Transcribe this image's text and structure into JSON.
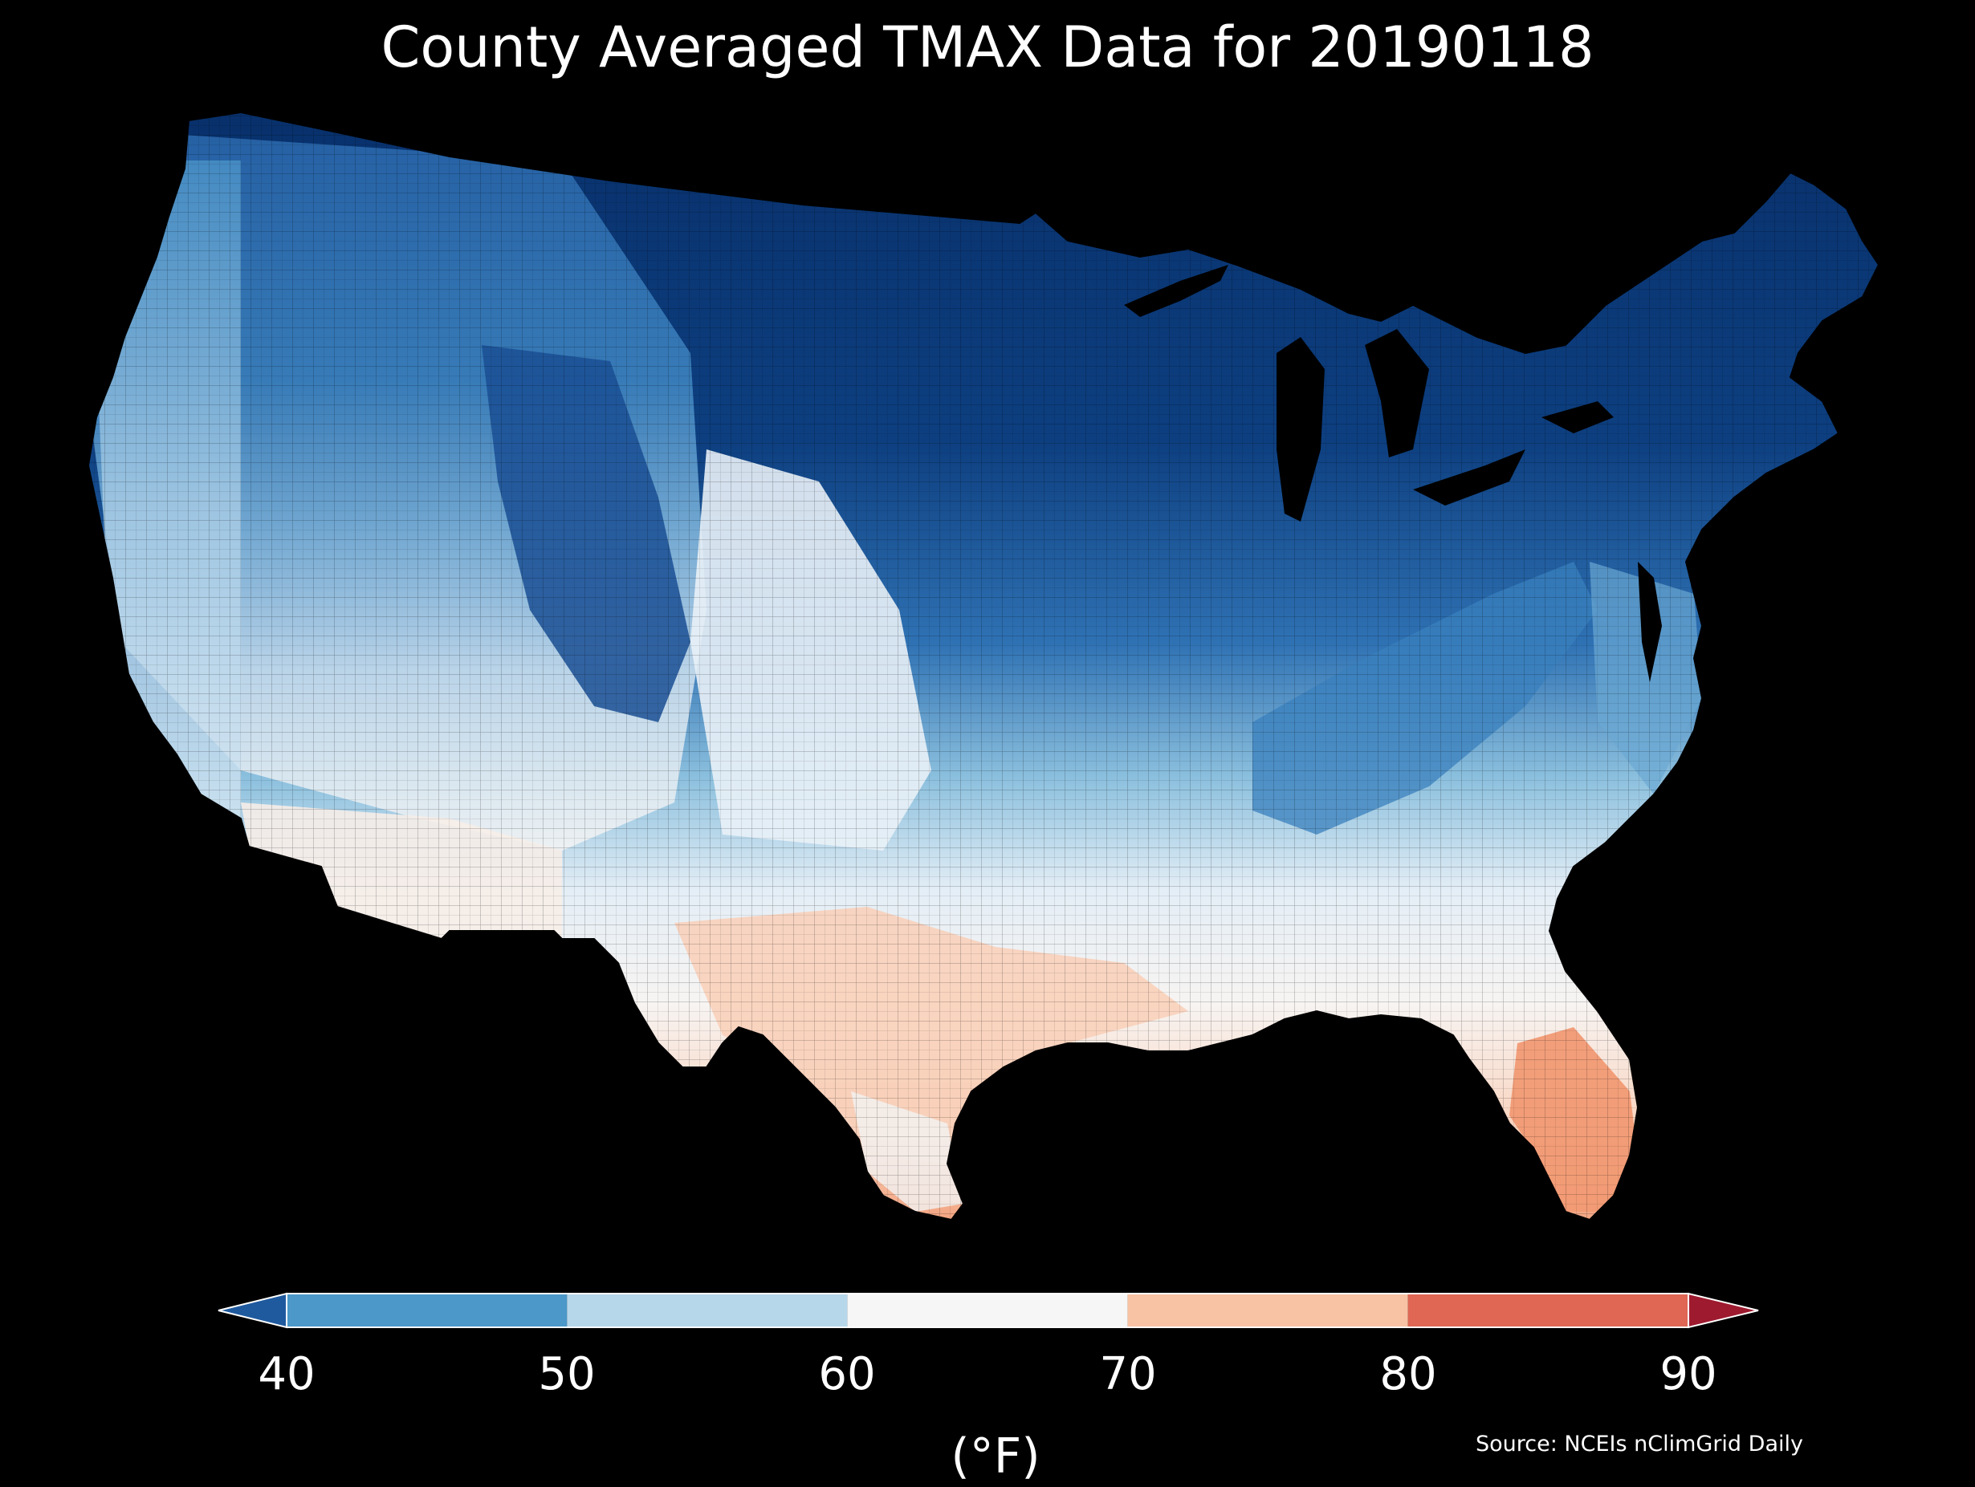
{
  "title": "County Averaged TMAX Data for 20190118",
  "colorbar": {
    "ticks": [
      "40",
      "50",
      "60",
      "70",
      "80",
      "90"
    ],
    "unit": "(°F)",
    "bins": [
      {
        "from": "<40",
        "color": "#1f5a9e"
      },
      {
        "from": "40",
        "to": "50",
        "color": "#4b98c9"
      },
      {
        "from": "50",
        "to": "60",
        "color": "#b6d6ea"
      },
      {
        "from": "60",
        "to": "70",
        "color": "#f6f6f6"
      },
      {
        "from": "70",
        "to": "80",
        "color": "#f8c2a4"
      },
      {
        "from": "80",
        "to": "90",
        "color": "#df6754"
      },
      {
        "from": ">90",
        "color": "#9e1a2f"
      }
    ]
  },
  "source": "Source: NCEIs nClimGrid Daily",
  "colors": {
    "background": "#000000",
    "coldest": "#08306b",
    "cold": "#2c6fb3",
    "cool": "#6aaed6",
    "mild": "#d6e6f2",
    "neutral": "#f5f5f5",
    "warm": "#fbdcc9",
    "warmer": "#f4a582"
  }
}
